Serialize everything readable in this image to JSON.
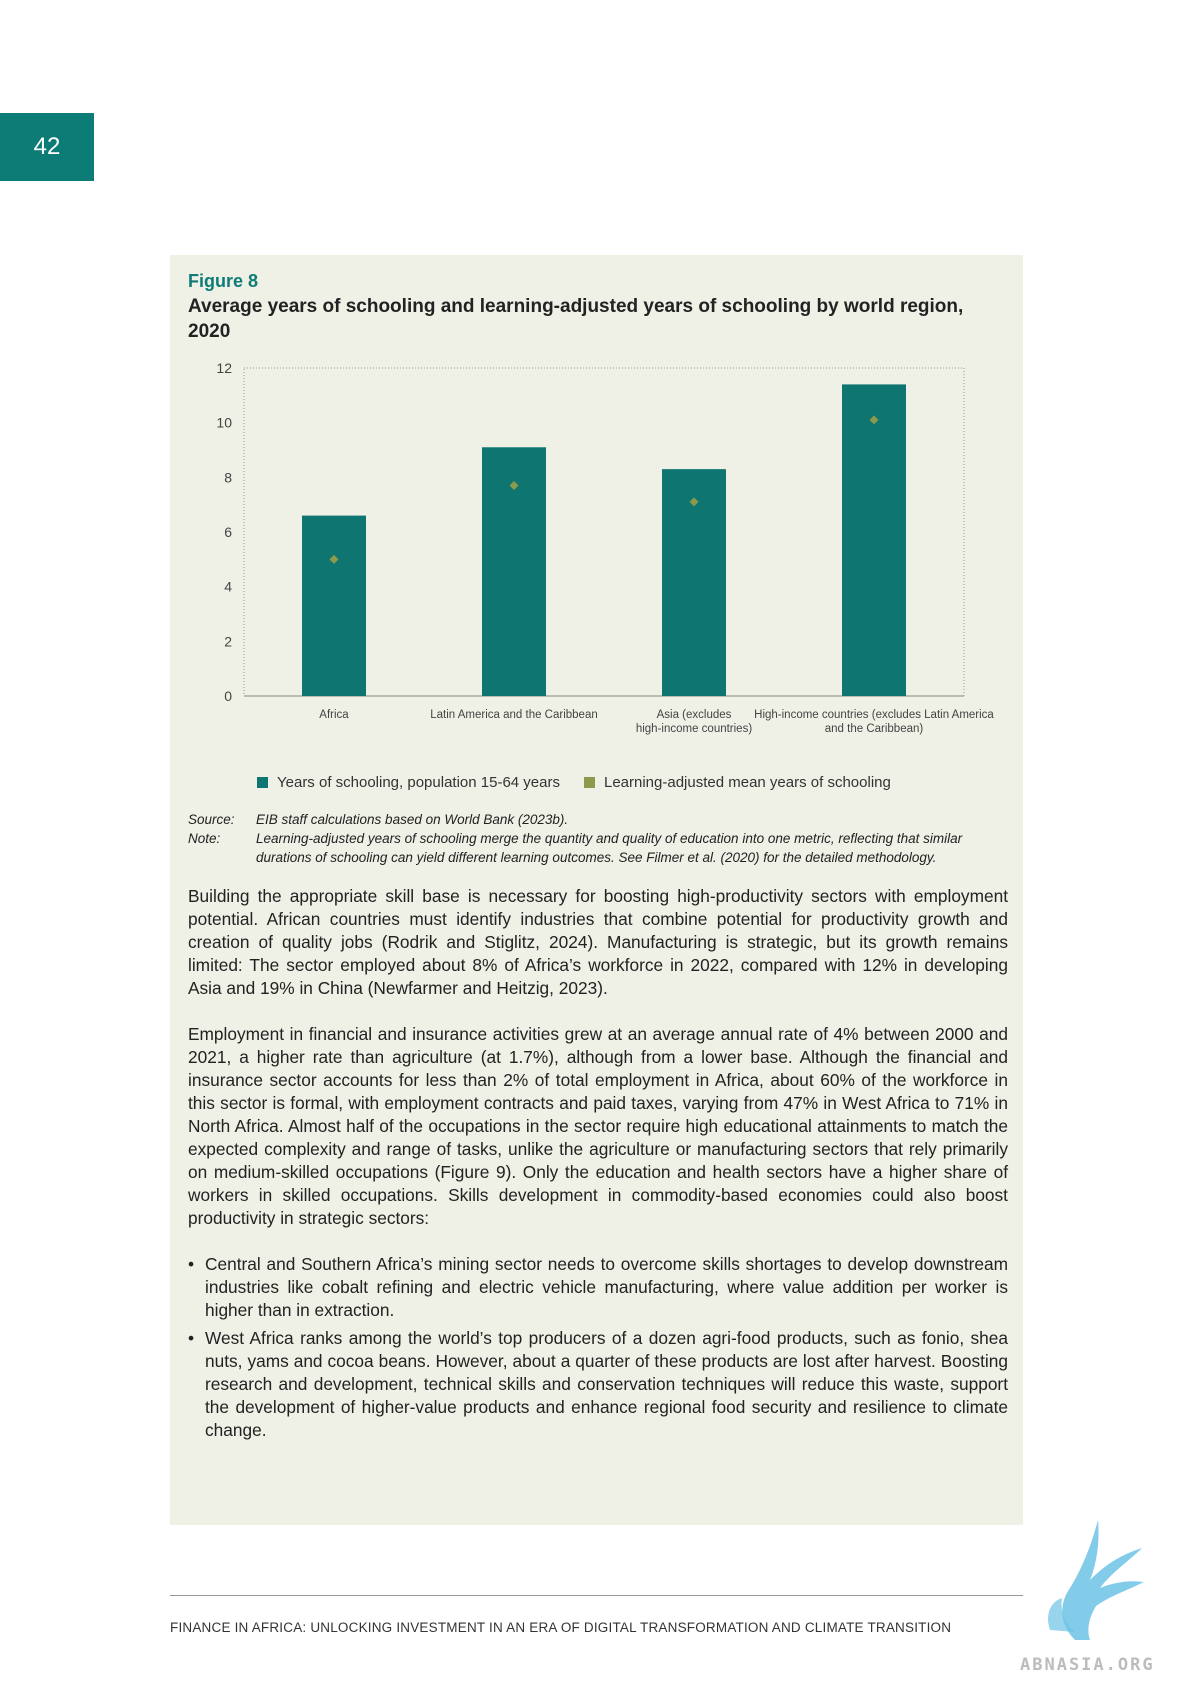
{
  "page_number": "42",
  "figure": {
    "label": "Figure 8",
    "title": "Average years of schooling and learning-adjusted years of schooling by world region, 2020"
  },
  "chart_data": {
    "type": "bar",
    "categories": [
      "Africa",
      "Latin America and the Caribbean",
      "Asia (excludes high-income countries)",
      "High-income countries (excludes Latin America and the Caribbean)"
    ],
    "category_label_lines": [
      [
        "Africa"
      ],
      [
        "Latin America and the Caribbean"
      ],
      [
        "Asia (excludes",
        "high-income countries)"
      ],
      [
        "High-income countries (excludes Latin America",
        "and the Caribbean)"
      ]
    ],
    "series": [
      {
        "name": "Years of schooling, population 15-64 years",
        "type": "bar",
        "color": "#0e7571",
        "values": [
          6.6,
          9.1,
          8.3,
          11.4
        ]
      },
      {
        "name": "Learning-adjusted mean years of schooling",
        "type": "marker",
        "color": "#8b9a4c",
        "values": [
          5.0,
          7.7,
          7.1,
          10.1
        ]
      }
    ],
    "ylim": [
      0,
      12
    ],
    "yticks": [
      "0",
      "2",
      "4",
      "6",
      "8",
      "10",
      "12"
    ],
    "legend_position": "bottom",
    "grid": false
  },
  "notes": {
    "source_label": "Source:",
    "source_text": "EIB staff calculations based on World Bank (2023b).",
    "note_label": "Note:",
    "note_text": "Learning-adjusted years of schooling merge the quantity and quality of education into one metric, reflecting that similar durations of schooling can yield different learning outcomes. See Filmer et al. (2020) for the detailed methodology."
  },
  "body": {
    "p1": "Building the appropriate skill base is necessary for boosting high-productivity sectors with employment potential. African countries must identify industries that combine potential for productivity growth and creation of quality jobs (Rodrik and Stiglitz, 2024). Manufacturing is strategic, but its growth remains limited: The sector employed about 8% of Africa’s workforce in 2022, compared with 12% in developing Asia and 19% in China (Newfarmer and Heitzig, 2023).",
    "p2": "Employment in financial and insurance activities grew at an average annual rate of 4% between 2000 and 2021, a higher rate than agriculture (at 1.7%), although from a lower base. Although the financial and insurance sector accounts for less than 2% of total employment in Africa, about 60% of the workforce in this sector is formal, with employment contracts and paid taxes, varying from 47% in West Africa to 71% in North Africa. Almost half of the occupations in the sector require high educational attainments to match the expected complexity and range of tasks, unlike the agriculture or manufacturing sectors that rely primarily on medium-skilled occupations (Figure 9). Only the education and health sectors have a higher share of workers in skilled occupations. Skills development in commodity-based economies could also boost productivity in strategic sectors:",
    "bullet_char": "•",
    "bullets": [
      "Central and Southern Africa’s mining sector needs to overcome skills shortages to develop downstream industries like cobalt refining and electric vehicle manufacturing, where value addition per worker is higher than in extraction.",
      "West Africa ranks among the world’s top producers of a dozen agri-food products, such as fonio, shea nuts, yams and cocoa beans. However, about a quarter of these products are lost after harvest. Boosting research and development, technical skills and conservation techniques will reduce this waste, support the development of higher-value products and enhance regional food security and resilience to climate change."
    ]
  },
  "footer": {
    "text": "FINANCE IN AFRICA: UNLOCKING INVESTMENT IN AN ERA OF DIGITAL TRANSFORMATION AND CLIMATE TRANSITION"
  },
  "watermark": {
    "text": "ABNASIA.ORG"
  },
  "colors": {
    "accent": "#0e7c76",
    "bar": "#0e7571",
    "marker": "#8b9a4c",
    "panel": "#eff0e6",
    "logo": "#6cc3e6"
  }
}
